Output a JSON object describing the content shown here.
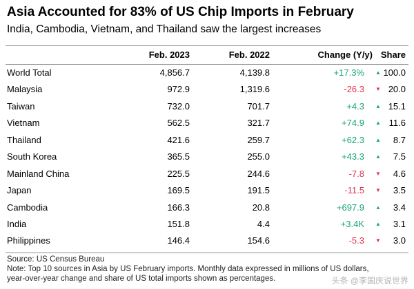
{
  "chart_data": {
    "type": "table",
    "title": "Asia Accounted for 83% of US Chip Imports in February",
    "subtitle": "India, Cambodia, Vietnam, and Thailand saw the largest increases",
    "columns": [
      "",
      "Feb. 2023",
      "Feb. 2022",
      "Change (Y/y)",
      "Share"
    ],
    "rows": [
      {
        "name": "World Total",
        "feb2023": "4,856.7",
        "feb2022": "4,139.8",
        "change": "+17.3%",
        "direction": "up",
        "share": "100.0"
      },
      {
        "name": "Malaysia",
        "feb2023": "972.9",
        "feb2022": "1,319.6",
        "change": "-26.3",
        "direction": "down",
        "share": "20.0"
      },
      {
        "name": "Taiwan",
        "feb2023": "732.0",
        "feb2022": "701.7",
        "change": "+4.3",
        "direction": "up",
        "share": "15.1"
      },
      {
        "name": "Vietnam",
        "feb2023": "562.5",
        "feb2022": "321.7",
        "change": "+74.9",
        "direction": "up",
        "share": "11.6"
      },
      {
        "name": "Thailand",
        "feb2023": "421.6",
        "feb2022": "259.7",
        "change": "+62.3",
        "direction": "up",
        "share": "8.7"
      },
      {
        "name": "South Korea",
        "feb2023": "365.5",
        "feb2022": "255.0",
        "change": "+43.3",
        "direction": "up",
        "share": "7.5"
      },
      {
        "name": "Mainland China",
        "feb2023": "225.5",
        "feb2022": "244.6",
        "change": "-7.8",
        "direction": "down",
        "share": "4.6"
      },
      {
        "name": "Japan",
        "feb2023": "169.5",
        "feb2022": "191.5",
        "change": "-11.5",
        "direction": "down",
        "share": "3.5"
      },
      {
        "name": "Cambodia",
        "feb2023": "166.3",
        "feb2022": "20.8",
        "change": "+697.9",
        "direction": "up",
        "share": "3.4"
      },
      {
        "name": "India",
        "feb2023": "151.8",
        "feb2022": "4.4",
        "change": "+3.4K",
        "direction": "up",
        "share": "3.1"
      },
      {
        "name": "Philippines",
        "feb2023": "146.4",
        "feb2022": "154.6",
        "change": "-5.3",
        "direction": "down",
        "share": "3.0"
      }
    ],
    "source": "Source: US Census Bureau",
    "note_line1": "Note: Top 10 sources in Asia by US February imports. Monthly data expressed in millions of US dollars,",
    "note_line2": "year-over-year change and share of US total imports shown as percentages.",
    "colors": {
      "up": "#1aa37a",
      "down": "#e0334b"
    }
  },
  "watermark": "头条 @李国庆说世界"
}
